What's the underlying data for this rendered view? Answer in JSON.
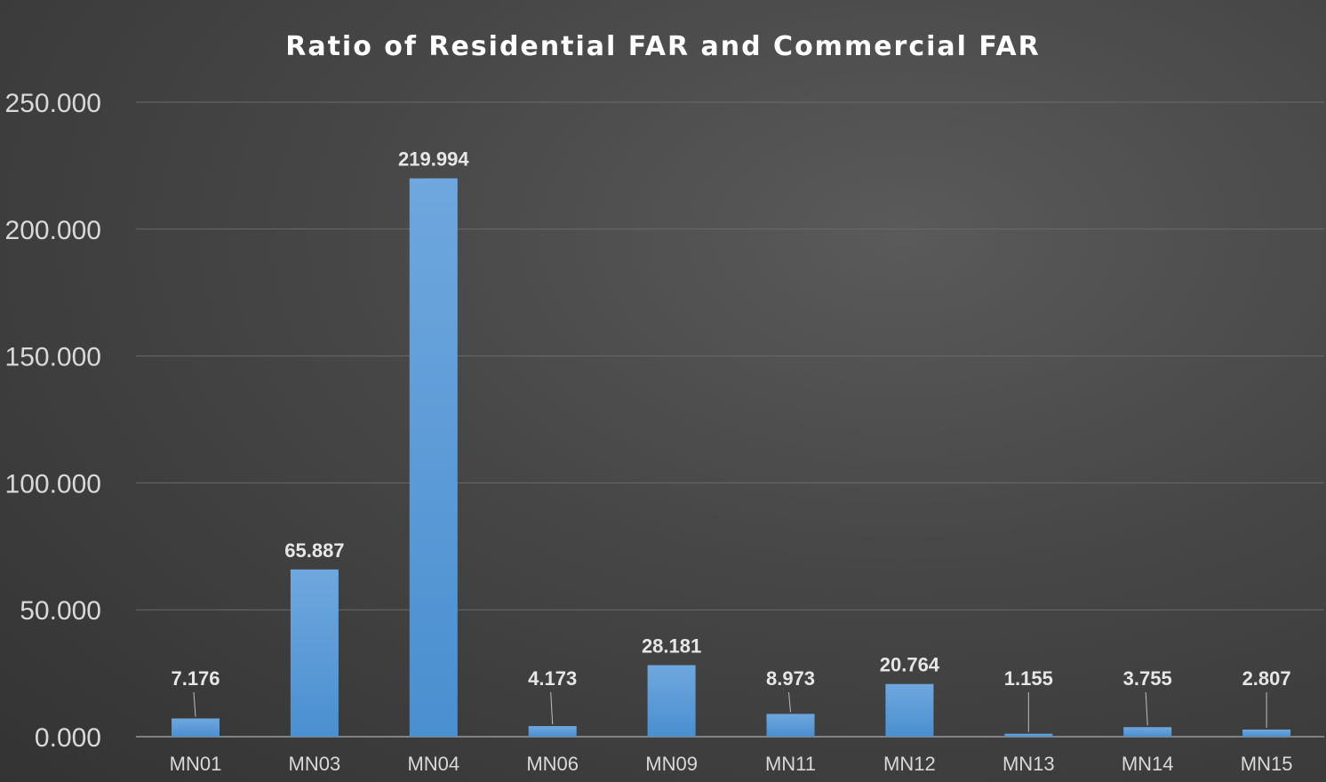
{
  "chart_data": {
    "type": "bar",
    "title": "Ratio of Residential FAR and Commercial FAR",
    "categories": [
      "MN01",
      "MN03",
      "MN04",
      "MN06",
      "MN09",
      "MN11",
      "MN12",
      "MN13",
      "MN14",
      "MN15"
    ],
    "values": [
      7.176,
      65.887,
      219.994,
      4.173,
      28.181,
      8.973,
      20.764,
      1.155,
      3.755,
      2.807
    ],
    "data_labels": [
      "7.176",
      "65.887",
      "219.994",
      "4.173",
      "28.181",
      "8.973",
      "20.764",
      "1.155",
      "3.755",
      "2.807"
    ],
    "yticks": [
      "0.000",
      "50.000",
      "100.000",
      "150.000",
      "200.000",
      "250.000"
    ],
    "ylim": [
      0,
      250
    ],
    "xlabel": "",
    "ylabel": "",
    "grid": true,
    "bar_color": "#5b9bd5"
  }
}
